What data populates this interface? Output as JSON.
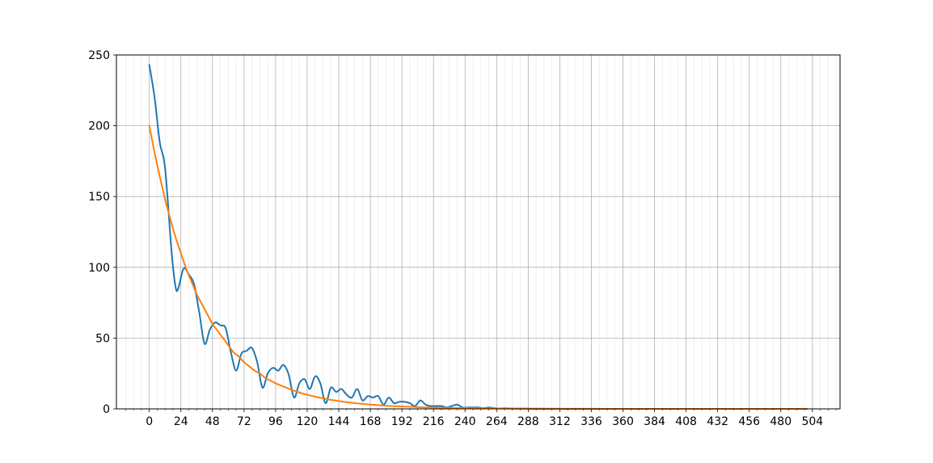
{
  "chart_data": {
    "type": "line",
    "title": "",
    "xlabel": "",
    "ylabel": "",
    "xlim": [
      -25,
      525
    ],
    "ylim": [
      0,
      250
    ],
    "x_ticks": [
      0,
      24,
      48,
      72,
      96,
      120,
      144,
      168,
      192,
      216,
      240,
      264,
      288,
      312,
      336,
      360,
      384,
      408,
      432,
      456,
      480,
      504
    ],
    "x_tick_labels": [
      "0",
      "24",
      "48",
      "72",
      "96",
      "120",
      "144",
      "168",
      "192",
      "216",
      "240",
      "264",
      "288",
      "312",
      "336",
      "360",
      "384",
      "408",
      "432",
      "456",
      "480",
      "504"
    ],
    "x_minor_tick_step": 6,
    "y_ticks": [
      0,
      50,
      100,
      150,
      200,
      250
    ],
    "y_tick_labels": [
      "0",
      "50",
      "100",
      "150",
      "200",
      "250"
    ],
    "grid": {
      "major": true,
      "minor": true
    },
    "legend": "none",
    "series": [
      {
        "color": "#1f77b4",
        "x": [
          0,
          4,
          8,
          12,
          17,
          20,
          22,
          26,
          30,
          34,
          38,
          42,
          46,
          50,
          54,
          58,
          62,
          66,
          70,
          74,
          78,
          82,
          86,
          90,
          94,
          98,
          102,
          106,
          110,
          114,
          118,
          122,
          126,
          130,
          134,
          138,
          142,
          146,
          150,
          154,
          158,
          162,
          166,
          170,
          174,
          178,
          182,
          186,
          190,
          194,
          198,
          202,
          206,
          210,
          214,
          218,
          222,
          226,
          230,
          234,
          238,
          242,
          246,
          250,
          254,
          258,
          262,
          266,
          270,
          274,
          278,
          282,
          286,
          290,
          300,
          320,
          350,
          400,
          450,
          500
        ],
        "y": [
          243,
          220,
          188,
          170,
          110,
          86,
          85,
          99,
          95,
          88,
          68,
          46,
          56,
          61,
          59,
          57,
          40,
          27,
          39,
          41,
          43,
          33,
          15,
          25,
          29,
          27,
          31,
          24,
          8,
          18,
          21,
          14,
          23,
          18,
          4,
          15,
          12,
          14,
          10,
          8,
          14,
          6,
          9,
          8,
          9,
          3,
          8,
          4,
          5,
          5,
          4,
          2,
          6,
          3,
          2,
          2,
          2,
          1,
          2,
          3,
          1,
          1,
          1,
          1,
          0.5,
          1,
          0.5,
          0.3,
          0.4,
          0.3,
          0.2,
          0.2,
          0.2,
          0.1,
          0.1,
          0,
          0,
          0,
          0,
          0
        ]
      },
      {
        "color": "#ff7f0e",
        "x": [
          0,
          4,
          8,
          12,
          16,
          20,
          24,
          28,
          32,
          36,
          40,
          44,
          48,
          52,
          56,
          60,
          64,
          68,
          72,
          76,
          80,
          84,
          88,
          92,
          96,
          100,
          104,
          108,
          112,
          116,
          120,
          128,
          136,
          144,
          152,
          160,
          168,
          176,
          184,
          192,
          200,
          208,
          216,
          224,
          232,
          240,
          248,
          256,
          264,
          272,
          280,
          288,
          296,
          304,
          312,
          320,
          340,
          360,
          380,
          400,
          420,
          440,
          460,
          480,
          500
        ],
        "y": [
          200,
          181,
          164,
          148,
          134,
          121,
          110,
          99,
          90,
          81,
          74,
          67,
          60,
          55,
          50,
          45,
          40,
          37,
          33,
          30,
          27,
          25,
          22,
          20,
          18,
          16.5,
          15,
          13.5,
          12.2,
          11,
          10,
          8.2,
          6.7,
          5.5,
          4.5,
          3.7,
          3,
          2.5,
          2,
          1.7,
          1.4,
          1.1,
          0.9,
          0.75,
          0.6,
          0.5,
          0.4,
          0.34,
          0.28,
          0.23,
          0.19,
          0.15,
          0.12,
          0.1,
          0.08,
          0.07,
          0.04,
          0.02,
          0.01,
          0.01,
          0,
          0,
          0,
          0,
          0
        ]
      }
    ]
  }
}
